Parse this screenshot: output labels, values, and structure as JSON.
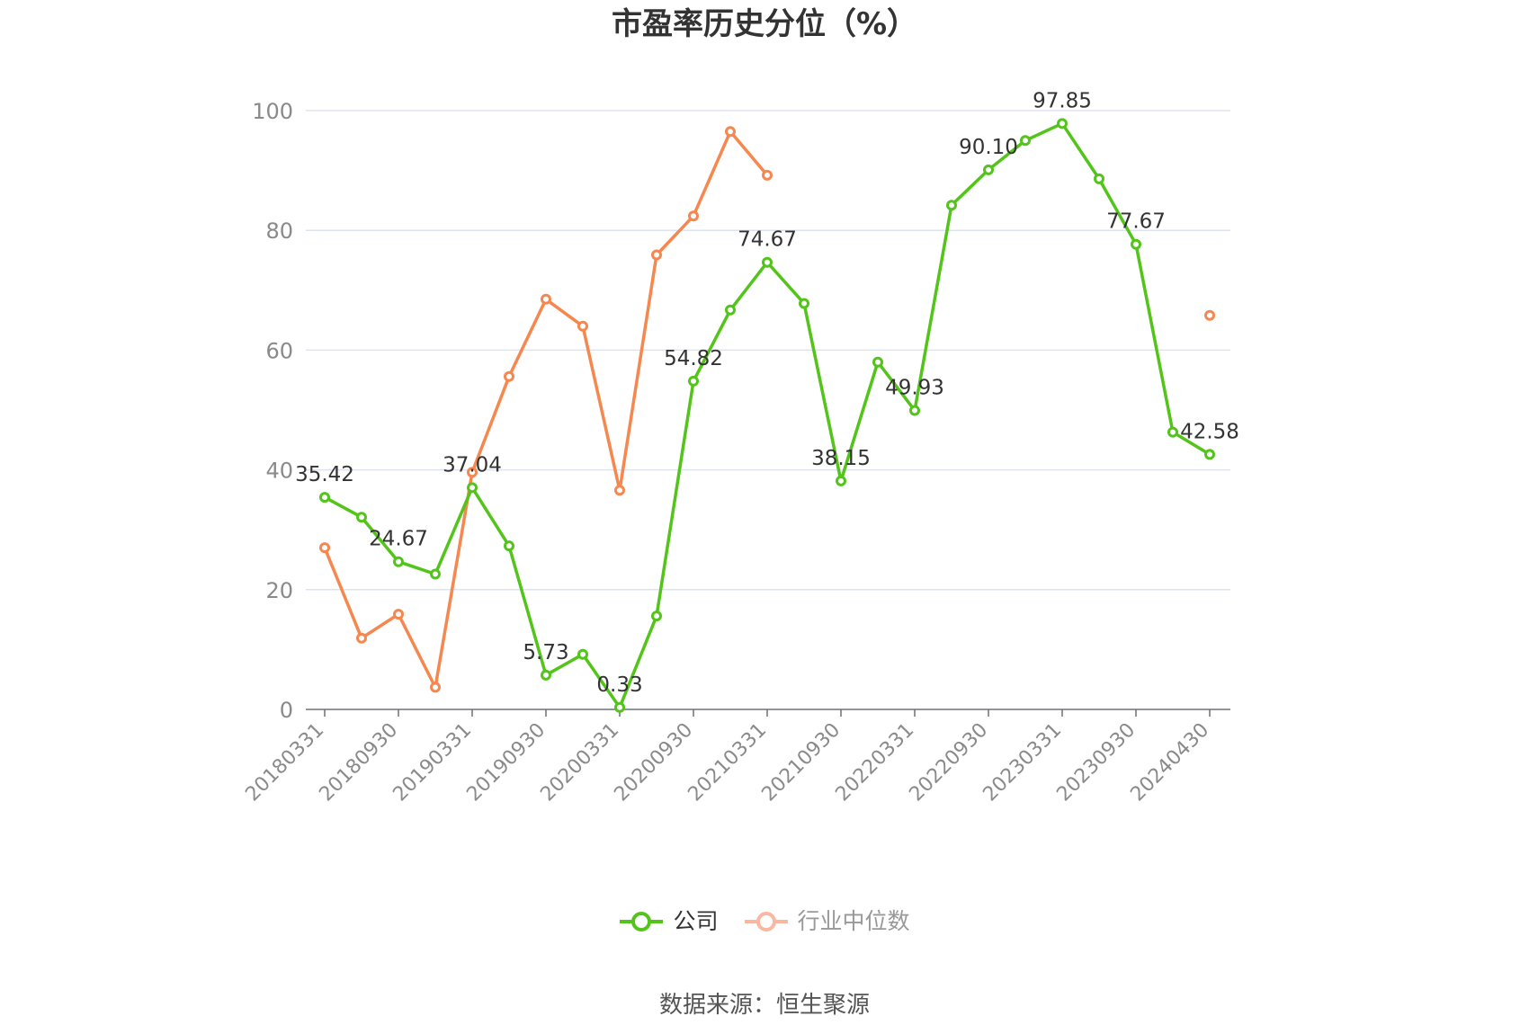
{
  "source_text": "数据来源：恒生聚源",
  "colors": {
    "company": "#52c41a",
    "industry": "#f5874f",
    "industry_legend": "#fbb8a0",
    "grid": "#dfe3f0",
    "axis": "#6e7079",
    "tick_label": "#8a8a8a",
    "data_label": "#333333"
  },
  "chart_data": {
    "type": "line",
    "title": "市盈率历史分位（%）",
    "xlabel": "",
    "ylabel": "",
    "ylim": [
      0,
      100
    ],
    "yticks": [
      0,
      20,
      40,
      60,
      80,
      100
    ],
    "grid": true,
    "legend_position": "bottom",
    "x": [
      "20180331",
      "20180630",
      "20180930",
      "20181231",
      "20190331",
      "20190630",
      "20190930",
      "20191231",
      "20200331",
      "20200630",
      "20200930",
      "20201231",
      "20210331",
      "20210630",
      "20210930",
      "20211231",
      "20220331",
      "20220630",
      "20220930",
      "20221231",
      "20230331",
      "20230630",
      "20230930",
      "20231231",
      "20240430"
    ],
    "x_tick_labels": [
      "20180331",
      "20180930",
      "20190331",
      "20190930",
      "20200331",
      "20200930",
      "20210331",
      "20210930",
      "20220331",
      "20220930",
      "20230331",
      "20230930",
      "20240430"
    ],
    "series": [
      {
        "name": "公司",
        "color": "#52c41a",
        "values": [
          35.42,
          32.1,
          24.67,
          22.6,
          37.04,
          27.3,
          5.73,
          9.2,
          0.33,
          15.6,
          54.82,
          66.7,
          74.67,
          67.8,
          38.15,
          58.0,
          49.93,
          84.2,
          90.1,
          95.0,
          97.85,
          88.6,
          77.67,
          46.3,
          42.58
        ],
        "labels": {
          "0": "35.42",
          "2": "24.67",
          "4": "37.04",
          "6": "5.73",
          "8": "0.33",
          "10": "54.82",
          "12": "74.67",
          "14": "38.15",
          "16": "49.93",
          "18": "90.10",
          "20": "97.85",
          "22": "77.67",
          "24": "42.58"
        }
      },
      {
        "name": "行业中位数",
        "color": "#f5874f",
        "values": [
          27.0,
          11.9,
          15.9,
          3.7,
          39.6,
          55.6,
          68.5,
          64.0,
          36.6,
          75.9,
          82.4,
          96.5,
          89.2,
          null,
          null,
          null,
          null,
          null,
          null,
          null,
          null,
          null,
          null,
          null,
          65.8
        ]
      }
    ]
  }
}
